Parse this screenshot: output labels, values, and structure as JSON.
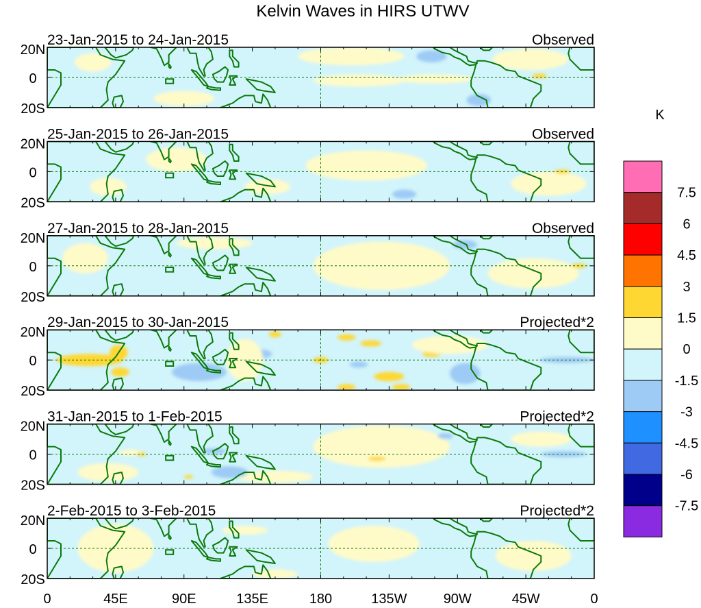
{
  "chart_data": {
    "type": "heatmap",
    "title": "Kelvin Waves in HIRS UTWV",
    "unit_label": "K",
    "x_ticks": [
      "0",
      "45E",
      "90E",
      "135E",
      "180",
      "135W",
      "90W",
      "45W",
      "0"
    ],
    "x_range_deg_east": [
      0,
      360
    ],
    "y_ticks": [
      "20N",
      "0",
      "20S"
    ],
    "y_range_deg": [
      -20,
      20
    ],
    "colorbar": {
      "colors": [
        "#8a2be2",
        "#00008b",
        "#4169e1",
        "#1e90ff",
        "#9ecbf5",
        "#d2f4fb",
        "#fffbc8",
        "#ffd733",
        "#ff7400",
        "#ff0000",
        "#a52a2a",
        "#ff6eb4"
      ],
      "levels": [
        "-7.5",
        "-6",
        "-4.5",
        "-3",
        "-1.5",
        "0",
        "1.5",
        "3",
        "4.5",
        "6",
        "7.5"
      ]
    },
    "panels": [
      {
        "date_range": "23-Jan-2015 to 24-Jan-2015",
        "label": "Observed",
        "blobs": [
          {
            "lon": 205,
            "lat": -2,
            "rx": 30,
            "ry": 4,
            "v": 0.5
          },
          {
            "lon": 255,
            "lat": -1,
            "rx": 25,
            "ry": 3,
            "v": 0.5
          },
          {
            "lon": 318,
            "lat": 12,
            "rx": 25,
            "ry": 7,
            "v": 0.5
          },
          {
            "lon": 200,
            "lat": 14,
            "rx": 35,
            "ry": 6,
            "v": 0.5
          },
          {
            "lon": 30,
            "lat": 10,
            "rx": 12,
            "ry": 6,
            "v": 0.5
          },
          {
            "lon": 90,
            "lat": -14,
            "rx": 20,
            "ry": 5,
            "v": 0.5
          },
          {
            "lon": 253,
            "lat": 14,
            "rx": 10,
            "ry": 4,
            "v": -1.7
          },
          {
            "lon": 284,
            "lat": -15,
            "rx": 8,
            "ry": 4,
            "v": -1.7
          },
          {
            "lon": 324,
            "lat": 1,
            "rx": 5,
            "ry": 1.5,
            "v": 1.7
          }
        ]
      },
      {
        "date_range": "25-Jan-2015 to 26-Jan-2015",
        "label": "Observed",
        "blobs": [
          {
            "lon": 85,
            "lat": 8,
            "rx": 20,
            "ry": 8,
            "v": 0.5
          },
          {
            "lon": 210,
            "lat": 4,
            "rx": 40,
            "ry": 10,
            "v": 0.5
          },
          {
            "lon": 40,
            "lat": -10,
            "rx": 12,
            "ry": 6,
            "v": 0.5
          },
          {
            "lon": 330,
            "lat": -8,
            "rx": 25,
            "ry": 8,
            "v": 0.5
          },
          {
            "lon": 145,
            "lat": -10,
            "rx": 15,
            "ry": 5,
            "v": 0.5
          },
          {
            "lon": 235,
            "lat": -15,
            "rx": 8,
            "ry": 3,
            "v": -1.7
          },
          {
            "lon": 339,
            "lat": 0,
            "rx": 5,
            "ry": 1.5,
            "v": 1.7
          }
        ]
      },
      {
        "date_range": "27-Jan-2015 to 28-Jan-2015",
        "label": "Observed",
        "blobs": [
          {
            "lon": 220,
            "lat": 0,
            "rx": 45,
            "ry": 16,
            "v": 0.5
          },
          {
            "lon": 25,
            "lat": 5,
            "rx": 15,
            "ry": 10,
            "v": 0.5
          },
          {
            "lon": 320,
            "lat": -5,
            "rx": 30,
            "ry": 10,
            "v": 0.5
          },
          {
            "lon": 110,
            "lat": 15,
            "rx": 25,
            "ry": 4,
            "v": 0.5
          },
          {
            "lon": 275,
            "lat": 14,
            "rx": 8,
            "ry": 3,
            "v": -1.7
          },
          {
            "lon": 350,
            "lat": 0,
            "rx": 5,
            "ry": 1.5,
            "v": 1.7
          }
        ]
      },
      {
        "date_range": "29-Jan-2015 to 30-Jan-2015",
        "label": "Projected*2",
        "blobs": [
          {
            "lon": 28,
            "lat": 0,
            "rx": 22,
            "ry": 4,
            "v": 1.7
          },
          {
            "lon": 47,
            "lat": 5,
            "rx": 6,
            "ry": 5,
            "v": 1.7
          },
          {
            "lon": 48,
            "lat": -8,
            "rx": 6,
            "ry": 3,
            "v": 1.7
          },
          {
            "lon": 197,
            "lat": 15,
            "rx": 6,
            "ry": 2,
            "v": 1.7
          },
          {
            "lon": 213,
            "lat": 11,
            "rx": 7,
            "ry": 2,
            "v": 1.7
          },
          {
            "lon": 225,
            "lat": -11,
            "rx": 10,
            "ry": 3,
            "v": 1.7
          },
          {
            "lon": 197,
            "lat": -18,
            "rx": 6,
            "ry": 2,
            "v": 1.7
          },
          {
            "lon": 233,
            "lat": -18,
            "rx": 6,
            "ry": 2,
            "v": 1.7
          },
          {
            "lon": 253,
            "lat": 4,
            "rx": 6,
            "ry": 2,
            "v": 1.7
          },
          {
            "lon": 180,
            "lat": 0,
            "rx": 5,
            "ry": 2,
            "v": 1.7
          },
          {
            "lon": 150,
            "lat": 17,
            "rx": 4,
            "ry": 2,
            "v": 1.7
          },
          {
            "lon": 100,
            "lat": -8,
            "rx": 18,
            "ry": 6,
            "v": -1.7
          },
          {
            "lon": 140,
            "lat": 4,
            "rx": 8,
            "ry": 3,
            "v": -1.7
          },
          {
            "lon": 275,
            "lat": -9,
            "rx": 10,
            "ry": 7,
            "v": -1.7
          },
          {
            "lon": 342,
            "lat": 0,
            "rx": 18,
            "ry": 2,
            "v": -1.7
          },
          {
            "lon": 205,
            "lat": -3,
            "rx": 6,
            "ry": 2,
            "v": -1.7
          },
          {
            "lon": 130,
            "lat": 0,
            "rx": 12,
            "ry": 14,
            "v": 0.5
          },
          {
            "lon": 265,
            "lat": 10,
            "rx": 25,
            "ry": 6,
            "v": 0.5
          }
        ]
      },
      {
        "date_range": "31-Jan-2015 to 1-Feb-2015",
        "label": "Projected*2",
        "blobs": [
          {
            "lon": 220,
            "lat": 5,
            "rx": 45,
            "ry": 14,
            "v": 0.5
          },
          {
            "lon": 40,
            "lat": -12,
            "rx": 20,
            "ry": 6,
            "v": 0.5
          },
          {
            "lon": 150,
            "lat": -15,
            "rx": 25,
            "ry": 4,
            "v": 0.5
          },
          {
            "lon": 55,
            "lat": 1,
            "rx": 8,
            "ry": 2,
            "v": 0.5
          },
          {
            "lon": 325,
            "lat": 10,
            "rx": 20,
            "ry": 5,
            "v": 0.5
          },
          {
            "lon": 62,
            "lat": 0,
            "rx": 3,
            "ry": 1.2,
            "v": 1.7
          },
          {
            "lon": 217,
            "lat": -3,
            "rx": 6,
            "ry": 1.5,
            "v": 1.7
          },
          {
            "lon": 93,
            "lat": -15,
            "rx": 3,
            "ry": 1.2,
            "v": 1.7
          },
          {
            "lon": 120,
            "lat": -12,
            "rx": 12,
            "ry": 4,
            "v": -1.7
          },
          {
            "lon": 110,
            "lat": 2,
            "rx": 8,
            "ry": 2,
            "v": -1.7
          },
          {
            "lon": 262,
            "lat": 12,
            "rx": 5,
            "ry": 2,
            "v": -1.7
          },
          {
            "lon": 340,
            "lat": 0,
            "rx": 15,
            "ry": 2,
            "v": -1.7
          }
        ]
      },
      {
        "date_range": "2-Feb-2015 to 3-Feb-2015",
        "label": "Projected*2",
        "blobs": [
          {
            "lon": 45,
            "lat": 0,
            "rx": 25,
            "ry": 16,
            "v": 0.5
          },
          {
            "lon": 215,
            "lat": 3,
            "rx": 30,
            "ry": 12,
            "v": 0.5
          },
          {
            "lon": 320,
            "lat": -5,
            "rx": 25,
            "ry": 10,
            "v": 0.5
          },
          {
            "lon": 130,
            "lat": 12,
            "rx": 15,
            "ry": 3,
            "v": 0.5
          },
          {
            "lon": 150,
            "lat": -17,
            "rx": 15,
            "ry": 3,
            "v": 0.5
          }
        ]
      }
    ]
  }
}
